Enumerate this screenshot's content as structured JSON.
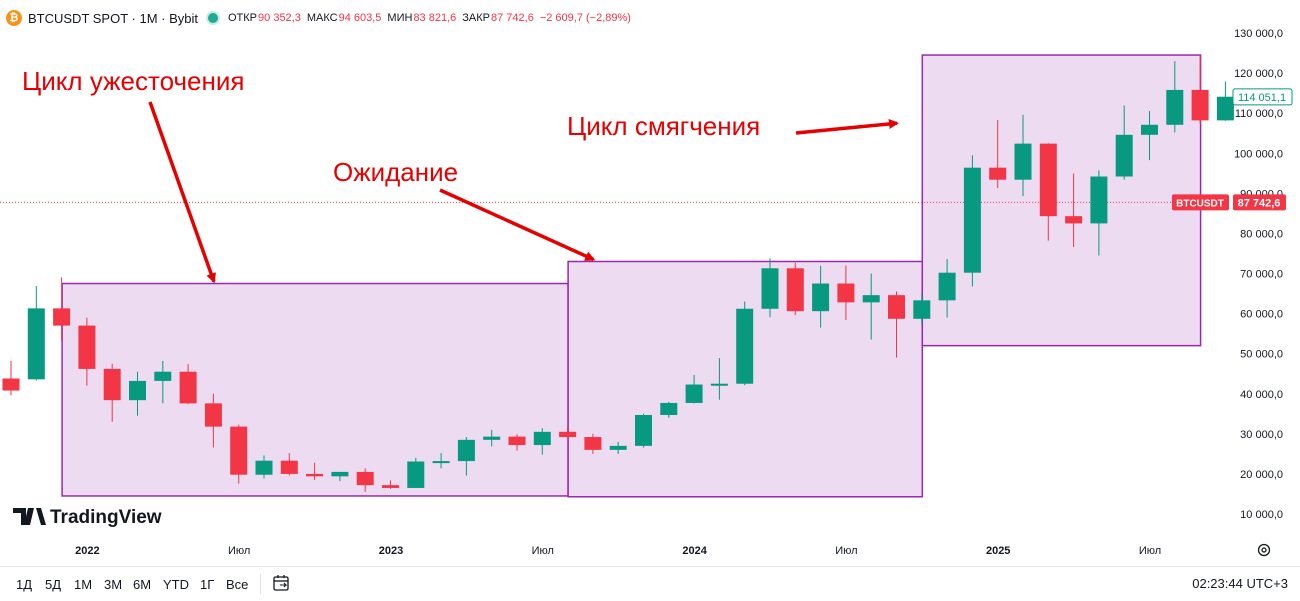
{
  "header": {
    "logo_glyph": "₿",
    "symbol": "BTCUSDT SPOT · 1M · Bybit",
    "ohlc": [
      {
        "label": "ОТКР",
        "value": "90 352,3"
      },
      {
        "label": "МАКС",
        "value": "94 603,5"
      },
      {
        "label": "МИН",
        "value": "83 821,6"
      },
      {
        "label": "ЗАКР",
        "value": "87 742,6"
      }
    ],
    "change": "−2 609,7 (−2,89%)"
  },
  "colors": {
    "up": "#089981",
    "down": "#f23645",
    "zone_fill": "#ead5ee",
    "zone_stroke": "#9c27b0",
    "annotation": "#e60000"
  },
  "chart_data": {
    "type": "candlestick",
    "interval": "1M",
    "ylim": [
      5000,
      135000
    ],
    "yticks": [
      "130 000,0",
      "120 000,0",
      "110 000,0",
      "100 000,0",
      "90 000,0",
      "80 000,0",
      "70 000,0",
      "60 000,0",
      "50 000,0",
      "40 000,0",
      "30 000,0",
      "20 000,0",
      "10 000,0"
    ],
    "ytick_values": [
      130000,
      120000,
      110000,
      100000,
      90000,
      80000,
      70000,
      60000,
      50000,
      40000,
      30000,
      20000,
      10000
    ],
    "xticks": [
      {
        "label": "2022",
        "index": 3,
        "bold": true
      },
      {
        "label": "Июл",
        "index": 9,
        "bold": false
      },
      {
        "label": "2023",
        "index": 15,
        "bold": true
      },
      {
        "label": "Июл",
        "index": 21,
        "bold": false
      },
      {
        "label": "2024",
        "index": 27,
        "bold": true
      },
      {
        "label": "Июл",
        "index": 33,
        "bold": false
      },
      {
        "label": "2025",
        "index": 39,
        "bold": true
      },
      {
        "label": "Июл",
        "index": 45,
        "bold": false
      }
    ],
    "candles": [
      {
        "o": 43800,
        "h": 48200,
        "l": 39600,
        "c": 40800
      },
      {
        "o": 43600,
        "h": 66900,
        "l": 43300,
        "c": 61300
      },
      {
        "o": 61300,
        "h": 69000,
        "l": 53200,
        "c": 57000
      },
      {
        "o": 57000,
        "h": 59000,
        "l": 42000,
        "c": 46200
      },
      {
        "o": 46200,
        "h": 47500,
        "l": 33000,
        "c": 38400
      },
      {
        "o": 38400,
        "h": 45500,
        "l": 34500,
        "c": 43200
      },
      {
        "o": 43200,
        "h": 48200,
        "l": 37600,
        "c": 45500
      },
      {
        "o": 45500,
        "h": 47400,
        "l": 37400,
        "c": 37600
      },
      {
        "o": 37600,
        "h": 40000,
        "l": 26600,
        "c": 31800
      },
      {
        "o": 31800,
        "h": 32300,
        "l": 17600,
        "c": 19800
      },
      {
        "o": 19800,
        "h": 24600,
        "l": 18900,
        "c": 23300
      },
      {
        "o": 23300,
        "h": 25200,
        "l": 19600,
        "c": 20000
      },
      {
        "o": 20000,
        "h": 22800,
        "l": 18500,
        "c": 19400
      },
      {
        "o": 19400,
        "h": 20500,
        "l": 18200,
        "c": 20500
      },
      {
        "o": 20500,
        "h": 21400,
        "l": 15500,
        "c": 17200
      },
      {
        "o": 17200,
        "h": 18400,
        "l": 16300,
        "c": 16500
      },
      {
        "o": 16500,
        "h": 24000,
        "l": 16500,
        "c": 23100
      },
      {
        "o": 23100,
        "h": 25200,
        "l": 21400,
        "c": 23200
      },
      {
        "o": 23200,
        "h": 29200,
        "l": 19600,
        "c": 28500
      },
      {
        "o": 28500,
        "h": 31000,
        "l": 26900,
        "c": 29300
      },
      {
        "o": 29300,
        "h": 29900,
        "l": 25800,
        "c": 27200
      },
      {
        "o": 27200,
        "h": 31400,
        "l": 24800,
        "c": 30500
      },
      {
        "o": 30500,
        "h": 31800,
        "l": 29000,
        "c": 29200
      },
      {
        "o": 29200,
        "h": 30000,
        "l": 25000,
        "c": 26000
      },
      {
        "o": 26000,
        "h": 28000,
        "l": 25000,
        "c": 27000
      },
      {
        "o": 27000,
        "h": 35000,
        "l": 26600,
        "c": 34700
      },
      {
        "o": 34700,
        "h": 38000,
        "l": 34000,
        "c": 37700
      },
      {
        "o": 37700,
        "h": 44700,
        "l": 37600,
        "c": 42300
      },
      {
        "o": 42300,
        "h": 48900,
        "l": 38500,
        "c": 42500
      },
      {
        "o": 42500,
        "h": 63000,
        "l": 42100,
        "c": 61200
      },
      {
        "o": 61200,
        "h": 73800,
        "l": 59100,
        "c": 71300
      },
      {
        "o": 71300,
        "h": 72700,
        "l": 59600,
        "c": 60600
      },
      {
        "o": 60600,
        "h": 71900,
        "l": 56500,
        "c": 67500
      },
      {
        "o": 67500,
        "h": 72000,
        "l": 58400,
        "c": 62800
      },
      {
        "o": 62800,
        "h": 70000,
        "l": 53500,
        "c": 64600
      },
      {
        "o": 64600,
        "h": 65500,
        "l": 49000,
        "c": 58700
      },
      {
        "o": 58700,
        "h": 65000,
        "l": 57200,
        "c": 63300
      },
      {
        "o": 63300,
        "h": 73600,
        "l": 59000,
        "c": 70200
      },
      {
        "o": 70200,
        "h": 99500,
        "l": 66800,
        "c": 96400
      },
      {
        "o": 96400,
        "h": 108300,
        "l": 91300,
        "c": 93400
      },
      {
        "o": 93400,
        "h": 109600,
        "l": 89300,
        "c": 102400
      },
      {
        "o": 102400,
        "h": 102500,
        "l": 78200,
        "c": 84300
      },
      {
        "o": 84300,
        "h": 95000,
        "l": 76600,
        "c": 82500
      },
      {
        "o": 82500,
        "h": 95700,
        "l": 74500,
        "c": 94200
      },
      {
        "o": 94200,
        "h": 111900,
        "l": 93400,
        "c": 104600
      },
      {
        "o": 104600,
        "h": 110500,
        "l": 98300,
        "c": 107100
      },
      {
        "o": 107100,
        "h": 123000,
        "l": 105200,
        "c": 115800
      },
      {
        "o": 115800,
        "h": 124400,
        "l": 107400,
        "c": 108200
      },
      {
        "o": 108200,
        "h": 117900,
        "l": 108100,
        "c": 114100
      }
    ],
    "zones": [
      {
        "start_index": 2,
        "end_index": 22,
        "top": 67500,
        "bottom": 14500
      },
      {
        "start_index": 22,
        "end_index": 36,
        "top": 73000,
        "bottom": 14300
      },
      {
        "start_index": 36,
        "end_index": 47,
        "top": 124500,
        "bottom": 52000
      }
    ],
    "annotations": [
      {
        "text": "Цикл ужесточения",
        "arrow_target_index": 8,
        "arrow_target_value": 68000
      },
      {
        "text": "Ожидание",
        "arrow_target_index": 23,
        "arrow_target_value": 73500
      },
      {
        "text": "Цикл смягчения",
        "arrow_target_index": 35,
        "arrow_target_value": 107500
      }
    ],
    "last_price": {
      "value": 114051.1,
      "label": "114 051,1"
    },
    "current_price": {
      "value": 87742.6,
      "symbol": "BTCUSDT",
      "label": "87 742,6"
    }
  },
  "watermark": "TradingView",
  "bottom_bar": {
    "timeframes": [
      "1Д",
      "5Д",
      "1М",
      "3М",
      "6М",
      "YTD",
      "1Г",
      "Все"
    ],
    "clock": "02:23:44 UTC+3"
  }
}
